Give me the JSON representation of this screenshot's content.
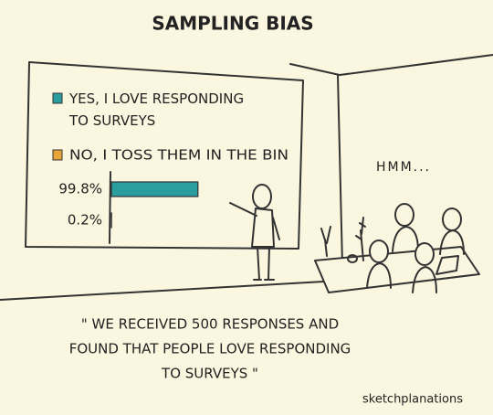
{
  "title": "SAMPLING BIAS",
  "board": {
    "legend": [
      {
        "label": "YES, I LOVE RESPONDING TO SURVEYS",
        "color": "#2a9e9f"
      },
      {
        "label": "NO, I TOSS THEM IN THE BIN",
        "color": "#e8a53a"
      }
    ],
    "values": [
      99.8,
      0.2
    ],
    "value_labels": [
      "99.8%",
      "0.2%"
    ]
  },
  "speech": "HMM...",
  "caption": [
    "\" WE RECEIVED 500 RESPONSES AND",
    "FOUND THAT PEOPLE LOVE RESPONDING",
    "TO SURVEYS \""
  ],
  "credit": "sketchplanations"
}
